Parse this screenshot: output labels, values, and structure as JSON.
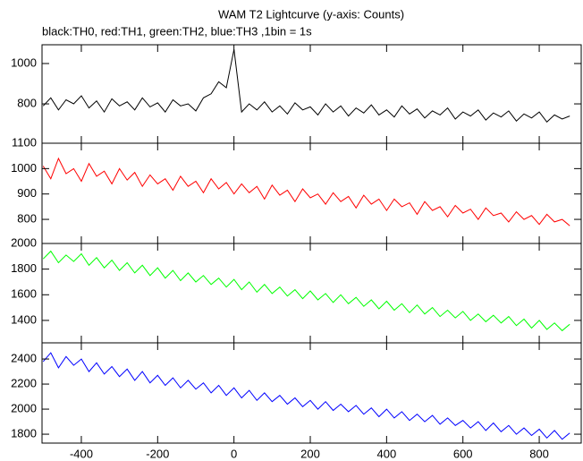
{
  "chart_data": [
    {
      "type": "line",
      "title": "WAM T2 Lightcurve (y-axis: Counts)",
      "subtitle": "black:TH0, red:TH1, green:TH2, blue:TH3 ,1bin = 1s",
      "x": [
        -500,
        -480,
        -460,
        -440,
        -420,
        -400,
        -380,
        -360,
        -340,
        -320,
        -300,
        -280,
        -260,
        -240,
        -220,
        -200,
        -180,
        -160,
        -140,
        -120,
        -100,
        -80,
        -60,
        -40,
        -20,
        0,
        20,
        40,
        60,
        80,
        100,
        120,
        140,
        160,
        180,
        200,
        220,
        240,
        260,
        280,
        300,
        320,
        340,
        360,
        380,
        400,
        420,
        440,
        460,
        480,
        500,
        520,
        540,
        560,
        580,
        600,
        620,
        640,
        660,
        680,
        700,
        720,
        740,
        760,
        780,
        800,
        820,
        840,
        860,
        880
      ],
      "series": [
        {
          "name": "TH0",
          "color": "#000000",
          "values": [
            790,
            830,
            770,
            820,
            800,
            840,
            780,
            815,
            760,
            825,
            790,
            810,
            770,
            830,
            785,
            805,
            760,
            820,
            790,
            800,
            765,
            830,
            850,
            910,
            880,
            1070,
            760,
            800,
            770,
            810,
            760,
            790,
            750,
            805,
            770,
            785,
            745,
            800,
            760,
            790,
            740,
            780,
            755,
            795,
            745,
            770,
            735,
            790,
            750,
            775,
            730,
            765,
            745,
            780,
            725,
            760,
            740,
            770,
            720,
            755,
            735,
            765,
            715,
            750,
            730,
            760,
            710,
            745,
            725,
            740
          ]
        }
      ],
      "xlim": [
        -503,
        910
      ],
      "ylim": [
        605,
        1093
      ],
      "yticks": [
        800,
        1000
      ]
    },
    {
      "type": "line",
      "x": [
        -500,
        -480,
        -460,
        -440,
        -420,
        -400,
        -380,
        -360,
        -340,
        -320,
        -300,
        -280,
        -260,
        -240,
        -220,
        -200,
        -180,
        -160,
        -140,
        -120,
        -100,
        -80,
        -60,
        -40,
        -20,
        0,
        20,
        40,
        60,
        80,
        100,
        120,
        140,
        160,
        180,
        200,
        220,
        240,
        260,
        280,
        300,
        320,
        340,
        360,
        380,
        400,
        420,
        440,
        460,
        480,
        500,
        520,
        540,
        560,
        580,
        600,
        620,
        640,
        660,
        680,
        700,
        720,
        740,
        760,
        780,
        800,
        820,
        840,
        860,
        880
      ],
      "series": [
        {
          "name": "TH1",
          "color": "#ff0000",
          "values": [
            1010,
            960,
            1040,
            980,
            1000,
            950,
            1020,
            970,
            990,
            940,
            1000,
            955,
            985,
            930,
            975,
            940,
            960,
            915,
            970,
            930,
            950,
            905,
            960,
            920,
            945,
            900,
            940,
            905,
            930,
            880,
            935,
            895,
            915,
            870,
            920,
            885,
            900,
            860,
            905,
            870,
            890,
            845,
            895,
            860,
            880,
            835,
            880,
            850,
            865,
            820,
            870,
            835,
            850,
            810,
            855,
            825,
            840,
            800,
            845,
            815,
            825,
            790,
            830,
            800,
            815,
            780,
            820,
            790,
            800,
            775
          ]
        }
      ],
      "xlim": [
        -503,
        910
      ],
      "ylim": [
        705,
        1100
      ],
      "yticks": [
        800,
        900,
        1000,
        1100
      ]
    },
    {
      "type": "line",
      "x": [
        -500,
        -480,
        -460,
        -440,
        -420,
        -400,
        -380,
        -360,
        -340,
        -320,
        -300,
        -280,
        -260,
        -240,
        -220,
        -200,
        -180,
        -160,
        -140,
        -120,
        -100,
        -80,
        -60,
        -40,
        -20,
        0,
        20,
        40,
        60,
        80,
        100,
        120,
        140,
        160,
        180,
        200,
        220,
        240,
        260,
        280,
        300,
        320,
        340,
        360,
        380,
        400,
        420,
        440,
        460,
        480,
        500,
        520,
        540,
        560,
        580,
        600,
        620,
        640,
        660,
        680,
        700,
        720,
        740,
        760,
        780,
        800,
        820,
        840,
        860,
        880
      ],
      "series": [
        {
          "name": "TH2",
          "color": "#00ff00",
          "values": [
            1880,
            1940,
            1850,
            1910,
            1860,
            1920,
            1830,
            1890,
            1810,
            1870,
            1790,
            1850,
            1770,
            1830,
            1750,
            1810,
            1730,
            1790,
            1710,
            1770,
            1700,
            1750,
            1680,
            1730,
            1660,
            1720,
            1640,
            1700,
            1620,
            1680,
            1610,
            1660,
            1590,
            1640,
            1570,
            1630,
            1560,
            1610,
            1540,
            1600,
            1530,
            1580,
            1510,
            1560,
            1490,
            1550,
            1480,
            1530,
            1460,
            1520,
            1450,
            1500,
            1430,
            1480,
            1420,
            1470,
            1400,
            1450,
            1390,
            1440,
            1380,
            1430,
            1360,
            1410,
            1340,
            1400,
            1330,
            1380,
            1320,
            1370
          ]
        }
      ],
      "xlim": [
        -503,
        910
      ],
      "ylim": [
        1225,
        2000
      ],
      "yticks": [
        1400,
        1600,
        1800,
        2000
      ]
    },
    {
      "type": "line",
      "x": [
        -500,
        -480,
        -460,
        -440,
        -420,
        -400,
        -380,
        -360,
        -340,
        -320,
        -300,
        -280,
        -260,
        -240,
        -220,
        -200,
        -180,
        -160,
        -140,
        -120,
        -100,
        -80,
        -60,
        -40,
        -20,
        0,
        20,
        40,
        60,
        80,
        100,
        120,
        140,
        160,
        180,
        200,
        220,
        240,
        260,
        280,
        300,
        320,
        340,
        360,
        380,
        400,
        420,
        440,
        460,
        480,
        500,
        520,
        540,
        560,
        580,
        600,
        620,
        640,
        660,
        680,
        700,
        720,
        740,
        760,
        780,
        800,
        820,
        840,
        860,
        880
      ],
      "series": [
        {
          "name": "TH3",
          "color": "#0000ff",
          "values": [
            2380,
            2450,
            2330,
            2420,
            2350,
            2400,
            2300,
            2370,
            2280,
            2340,
            2260,
            2320,
            2230,
            2300,
            2210,
            2270,
            2190,
            2250,
            2170,
            2230,
            2160,
            2210,
            2130,
            2190,
            2110,
            2170,
            2090,
            2150,
            2070,
            2130,
            2060,
            2110,
            2040,
            2090,
            2020,
            2070,
            2000,
            2060,
            1990,
            2040,
            1980,
            2030,
            1960,
            2010,
            1940,
            2000,
            1930,
            1980,
            1910,
            1960,
            1900,
            1950,
            1880,
            1930,
            1870,
            1910,
            1850,
            1900,
            1830,
            1890,
            1820,
            1870,
            1800,
            1850,
            1790,
            1840,
            1770,
            1830,
            1760,
            1810
          ]
        }
      ],
      "xlim": [
        -503,
        910
      ],
      "ylim": [
        1729,
        2529
      ],
      "yticks": [
        1800,
        2000,
        2200,
        2400
      ],
      "xticks": [
        -400,
        -200,
        0,
        200,
        400,
        600,
        800
      ]
    }
  ]
}
